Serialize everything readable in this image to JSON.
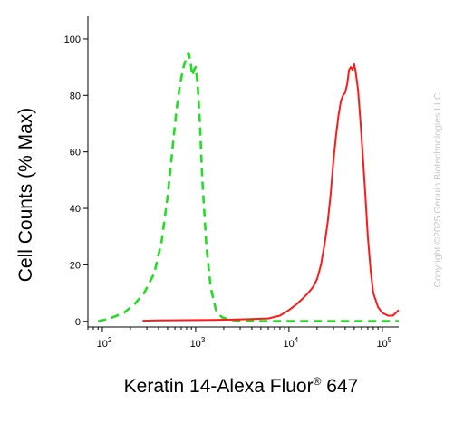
{
  "chart_data": {
    "type": "line",
    "xlabel_main": "Keratin 14-Alexa Fluor",
    "xlabel_sup": "®",
    "xlabel_tail": " 647",
    "ylabel": "Cell Counts (% Max)",
    "x_scale": "log",
    "xlim": [
      70,
      150000
    ],
    "ylim": [
      -2,
      108
    ],
    "x_ticks": [
      {
        "value": 100,
        "base": "10",
        "exp": "2"
      },
      {
        "value": 1000,
        "base": "10",
        "exp": "3"
      },
      {
        "value": 10000,
        "base": "10",
        "exp": "4"
      },
      {
        "value": 100000,
        "base": "10",
        "exp": "5"
      }
    ],
    "y_ticks": [
      {
        "value": 0,
        "label": "0"
      },
      {
        "value": 20,
        "label": "20"
      },
      {
        "value": 40,
        "label": "40"
      },
      {
        "value": 60,
        "label": "60"
      },
      {
        "value": 80,
        "label": "80"
      },
      {
        "value": 100,
        "label": "100"
      }
    ],
    "grid": false,
    "series": [
      {
        "color": "#22dd22",
        "style": "dashed",
        "x": [
          90,
          120,
          170,
          220,
          280,
          360,
          430,
          500,
          560,
          620,
          680,
          740,
          790,
          840,
          880,
          920,
          960,
          1000,
          1050,
          1110,
          1180,
          1300,
          1450,
          1650,
          1900,
          2300,
          3000,
          5000,
          10000,
          30000,
          100000,
          150000
        ],
        "y": [
          0,
          1,
          3,
          6,
          10,
          17,
          28,
          44,
          60,
          74,
          84,
          90,
          93,
          95,
          92,
          87,
          89,
          90,
          84,
          70,
          50,
          27,
          12,
          4,
          1.5,
          0.5,
          0.2,
          0.1,
          0.1,
          0.1,
          0.1,
          0.1
        ]
      },
      {
        "color": "#ff1a1a",
        "style": "solid",
        "x": [
          270,
          400,
          800,
          1500,
          2500,
          4000,
          6000,
          8000,
          10000,
          12000,
          14000,
          16000,
          18000,
          20000,
          22000,
          24000,
          26000,
          28000,
          30000,
          32000,
          34000,
          36000,
          38000,
          40000,
          42000,
          44000,
          46000,
          48000,
          50000,
          52000,
          55000,
          58000,
          62000,
          66000,
          70000,
          75000,
          80000,
          90000,
          100000,
          115000,
          130000,
          150000
        ],
        "y": [
          0.2,
          0.3,
          0.4,
          0.5,
          0.6,
          0.8,
          1,
          2,
          4,
          6,
          8,
          10,
          12,
          15,
          20,
          27,
          35,
          45,
          57,
          66,
          73,
          78,
          80,
          81,
          84,
          89,
          90,
          89,
          91,
          88,
          82,
          72,
          58,
          44,
          30,
          18,
          10,
          5,
          3,
          2,
          2,
          4
        ]
      }
    ]
  },
  "watermark": "Copyright ©2025 Genuin Biotechnologies LLC"
}
